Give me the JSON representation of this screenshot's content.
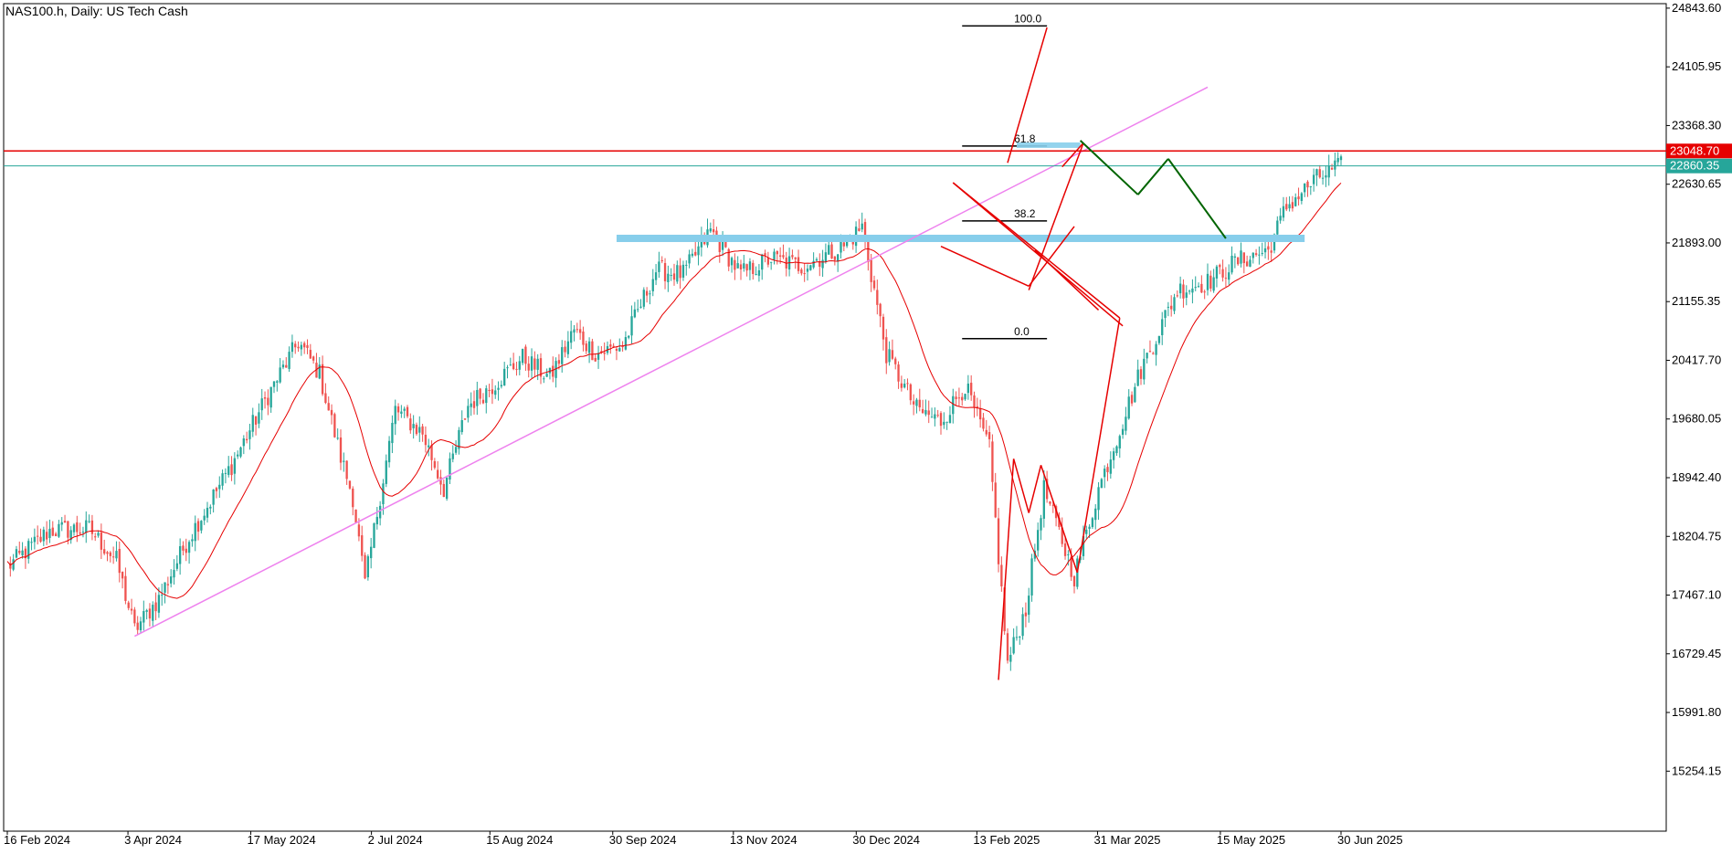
{
  "chart_data": {
    "type": "candlestick",
    "title": "NAS100.h, Daily:  US Tech Cash",
    "ylim": [
      14500,
      24900
    ],
    "y_ticks": [
      "24843.60",
      "24105.95",
      "23368.30",
      "22630.65",
      "21893.00",
      "21155.35",
      "20417.70",
      "19680.05",
      "18942.40",
      "18204.75",
      "17467.10",
      "16729.45",
      "15991.80",
      "15254.15"
    ],
    "x_ticks": [
      "16 Feb 2024",
      "3 Apr 2024",
      "17 May 2024",
      "2 Jul 2024",
      "15 Aug 2024",
      "30 Sep 2024",
      "13 Nov 2024",
      "30 Dec 2024",
      "13 Feb 2025",
      "31 Mar 2025",
      "15 May 2025",
      "30 Jun 2025"
    ],
    "price_levels": [
      {
        "label": "23048.70",
        "value": 23048.7,
        "color": "#e60000"
      },
      {
        "label": "22860.35",
        "value": 22860.35,
        "color": "#26a69a"
      }
    ],
    "moving_average": {
      "color": "#e60000"
    },
    "candle_colors": {
      "up": "#26a69a",
      "down": "#ef5350"
    },
    "anchors": [
      [
        1,
        17850
      ],
      [
        14,
        18280
      ],
      [
        27,
        18300
      ],
      [
        36,
        17900
      ],
      [
        42,
        17030
      ],
      [
        50,
        17420
      ],
      [
        60,
        18200
      ],
      [
        74,
        19100
      ],
      [
        86,
        19980
      ],
      [
        96,
        20650
      ],
      [
        103,
        20250
      ],
      [
        110,
        19200
      ],
      [
        114,
        18700
      ],
      [
        118,
        17600
      ],
      [
        122,
        18500
      ],
      [
        128,
        19800
      ],
      [
        137,
        19500
      ],
      [
        144,
        18800
      ],
      [
        152,
        19850
      ],
      [
        160,
        20100
      ],
      [
        170,
        20450
      ],
      [
        179,
        20200
      ],
      [
        187,
        20800
      ],
      [
        194,
        20500
      ],
      [
        203,
        20600
      ],
      [
        214,
        21550
      ],
      [
        223,
        21500
      ],
      [
        232,
        22050
      ],
      [
        242,
        21500
      ],
      [
        252,
        21700
      ],
      [
        262,
        21600
      ],
      [
        276,
        21850
      ],
      [
        282,
        22100
      ],
      [
        290,
        20500
      ],
      [
        300,
        19800
      ],
      [
        308,
        19650
      ],
      [
        316,
        20100
      ],
      [
        324,
        19300
      ],
      [
        330,
        16600
      ],
      [
        336,
        17300
      ],
      [
        342,
        18800
      ],
      [
        352,
        17700
      ],
      [
        360,
        18800
      ],
      [
        374,
        20300
      ],
      [
        386,
        21300
      ],
      [
        396,
        21400
      ],
      [
        405,
        21650
      ],
      [
        416,
        21800
      ],
      [
        422,
        22350
      ],
      [
        432,
        22700
      ],
      [
        440,
        22860
      ]
    ],
    "fibonacci": {
      "levels": [
        "100.0",
        "61.8",
        "38.2",
        "0.0"
      ],
      "values": [
        24620,
        23110,
        22170,
        20690
      ]
    },
    "support_zone": {
      "value": 21950,
      "color": "#87ceeb"
    },
    "trendline": {
      "color": "#ee82ee"
    },
    "projection": {
      "color": "#006400"
    }
  }
}
